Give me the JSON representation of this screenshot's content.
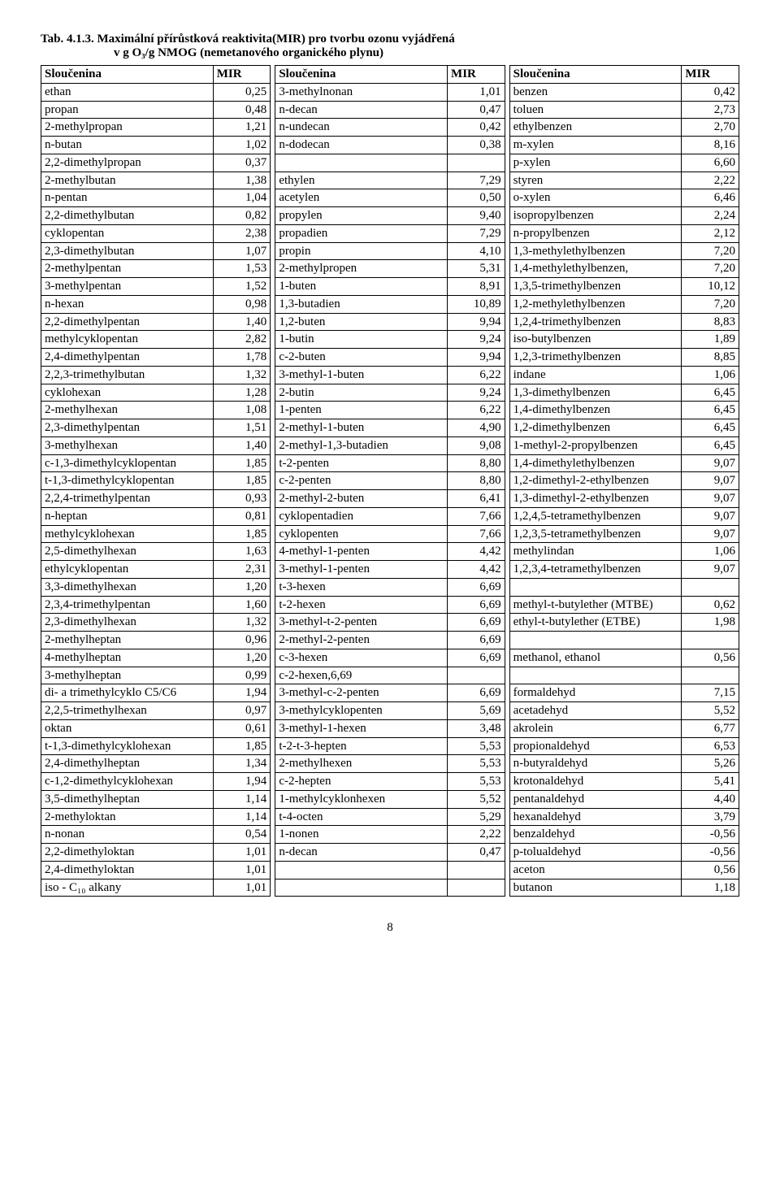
{
  "title": {
    "line1_prefix": "Tab. 4.1.3.",
    "line1_rest": " Maximální přírůstková reaktivita(MIR) pro tvorbu ozonu vyjádřená",
    "line2": "v g O₃/g NMOG (nemetanového organického plynu)"
  },
  "headers": {
    "compound": "Sloučenina",
    "mir": "MIR"
  },
  "cols": {
    "c1": [
      [
        "ethan",
        "0,25"
      ],
      [
        "propan",
        "0,48"
      ],
      [
        "2-methylpropan",
        "1,21"
      ],
      [
        "n-butan",
        "1,02"
      ],
      [
        "2,2-dimethylpropan",
        "0,37"
      ],
      [
        "2-methylbutan",
        "1,38"
      ],
      [
        "n-pentan",
        "1,04"
      ],
      [
        "2,2-dimethylbutan",
        "0,82"
      ],
      [
        "cyklopentan",
        "2,38"
      ],
      [
        "2,3-dimethylbutan",
        "1,07"
      ],
      [
        "2-methylpentan",
        "1,53"
      ],
      [
        "3-methylpentan",
        "1,52"
      ],
      [
        "n-hexan",
        "0,98"
      ],
      [
        "2,2-dimethylpentan",
        "1,40"
      ],
      [
        "methylcyklopentan",
        "2,82"
      ],
      [
        "2,4-dimethylpentan",
        "1,78"
      ],
      [
        "2,2,3-trimethylbutan",
        "1,32"
      ],
      [
        "cyklohexan",
        "1,28"
      ],
      [
        "2-methylhexan",
        "1,08"
      ],
      [
        "2,3-dimethylpentan",
        "1,51"
      ],
      [
        "3-methylhexan",
        "1,40"
      ],
      [
        "c-1,3-dimethylcyklopentan",
        "1,85"
      ],
      [
        "t-1,3-dimethylcyklopentan",
        "1,85"
      ],
      [
        "2,2,4-trimethylpentan",
        "0,93"
      ],
      [
        "n-heptan",
        "0,81"
      ],
      [
        "methylcyklohexan",
        "1,85"
      ],
      [
        "2,5-dimethylhexan",
        "1,63"
      ],
      [
        "ethylcyklopentan",
        "2,31"
      ],
      [
        "3,3-dimethylhexan",
        "1,20"
      ],
      [
        "2,3,4-trimethylpentan",
        "1,60"
      ],
      [
        "2,3-dimethylhexan",
        "1,32"
      ],
      [
        "2-methylheptan",
        "0,96"
      ],
      [
        "4-methylheptan",
        "1,20"
      ],
      [
        "3-methylheptan",
        "0,99"
      ],
      [
        "di- a trimethylcyklo C5/C6",
        "1,94"
      ],
      [
        "2,2,5-trimethylhexan",
        "0,97"
      ],
      [
        "oktan",
        "0,61"
      ],
      [
        "t-1,3-dimethylcyklohexan",
        "1,85"
      ],
      [
        "2,4-dimethylheptan",
        "1,34"
      ],
      [
        "c-1,2-dimethylcyklohexan",
        "1,94"
      ],
      [
        "3,5-dimethylheptan",
        "1,14"
      ],
      [
        "2-methyloktan",
        "1,14"
      ],
      [
        "n-nonan",
        "0,54"
      ],
      [
        "2,2-dimethyloktan",
        "1,01"
      ],
      [
        "2,4-dimethyloktan",
        "1,01"
      ],
      [
        "iso - C₁₀ alkany",
        "1,01"
      ]
    ],
    "c2": [
      [
        "3-methylnonan",
        "1,01"
      ],
      [
        "n-decan",
        "0,47"
      ],
      [
        "n-undecan",
        "0,42"
      ],
      [
        "n-dodecan",
        "0,38"
      ],
      [
        "",
        ""
      ],
      [
        "ethylen",
        "7,29"
      ],
      [
        "acetylen",
        "0,50"
      ],
      [
        "propylen",
        "9,40"
      ],
      [
        "propadien",
        "7,29"
      ],
      [
        "propin",
        "4,10"
      ],
      [
        "2-methylpropen",
        "5,31"
      ],
      [
        "1-buten",
        "8,91"
      ],
      [
        "1,3-butadien",
        "10,89"
      ],
      [
        "1,2-buten",
        "9,94"
      ],
      [
        "1-butin",
        "9,24"
      ],
      [
        "c-2-buten",
        "9,94"
      ],
      [
        "3-methyl-1-buten",
        "6,22"
      ],
      [
        "2-butin",
        "9,24"
      ],
      [
        "1-penten",
        "6,22"
      ],
      [
        "2-methyl-1-buten",
        "4,90"
      ],
      [
        "2-methyl-1,3-butadien",
        "9,08"
      ],
      [
        "t-2-penten",
        "8,80"
      ],
      [
        "c-2-penten",
        "8,80"
      ],
      [
        "2-methyl-2-buten",
        "6,41"
      ],
      [
        "cyklopentadien",
        "7,66"
      ],
      [
        "cyklopenten",
        "7,66"
      ],
      [
        "4-methyl-1-penten",
        "4,42"
      ],
      [
        "3-methyl-1-penten",
        "4,42"
      ],
      [
        "t-3-hexen",
        "6,69"
      ],
      [
        "t-2-hexen",
        "6,69"
      ],
      [
        "3-methyl-t-2-penten",
        "6,69"
      ],
      [
        "2-methyl-2-penten",
        "6,69"
      ],
      [
        "c-3-hexen",
        "6,69"
      ],
      [
        "c-2-hexen,6,69",
        ""
      ],
      [
        "3-methyl-c-2-penten",
        "6,69"
      ],
      [
        "3-methylcyklopenten",
        "5,69"
      ],
      [
        "3-methyl-1-hexen",
        "3,48"
      ],
      [
        "t-2-t-3-hepten",
        "5,53"
      ],
      [
        "2-methylhexen",
        "5,53"
      ],
      [
        "c-2-hepten",
        "5,53"
      ],
      [
        "1-methylcyklonhexen",
        "5,52"
      ],
      [
        "t-4-octen",
        "5,29"
      ],
      [
        "1-nonen",
        "2,22"
      ],
      [
        "n-decan",
        "0,47"
      ],
      [
        "",
        ""
      ],
      [
        "",
        ""
      ]
    ],
    "c3": [
      [
        "benzen",
        "0,42"
      ],
      [
        "toluen",
        "2,73"
      ],
      [
        "ethylbenzen",
        "2,70"
      ],
      [
        "m-xylen",
        "8,16"
      ],
      [
        "p-xylen",
        "6,60"
      ],
      [
        "styren",
        "2,22"
      ],
      [
        "o-xylen",
        "6,46"
      ],
      [
        "isopropylbenzen",
        "2,24"
      ],
      [
        "n-propylbenzen",
        "2,12"
      ],
      [
        "1,3-methylethylbenzen",
        "7,20"
      ],
      [
        "1,4-methylethylbenzen,",
        "7,20"
      ],
      [
        "1,3,5-trimethylbenzen",
        "10,12"
      ],
      [
        "1,2-methylethylbenzen",
        "7,20"
      ],
      [
        "1,2,4-trimethylbenzen",
        "8,83"
      ],
      [
        "iso-butylbenzen",
        "1,89"
      ],
      [
        "1,2,3-trimethylbenzen",
        "8,85"
      ],
      [
        "indane",
        "1,06"
      ],
      [
        "1,3-dimethylbenzen",
        "6,45"
      ],
      [
        "1,4-dimethylbenzen",
        "6,45"
      ],
      [
        "1,2-dimethylbenzen",
        "6,45"
      ],
      [
        "1-methyl-2-propylbenzen",
        "6,45"
      ],
      [
        "1,4-dimethylethylbenzen",
        "9,07"
      ],
      [
        "1,2-dimethyl-2-ethylbenzen",
        "9,07"
      ],
      [
        "1,3-dimethyl-2-ethylbenzen",
        "9,07"
      ],
      [
        "1,2,4,5-tetramethylbenzen",
        "9,07"
      ],
      [
        "1,2,3,5-tetramethylbenzen",
        "9,07"
      ],
      [
        "methylindan",
        "1,06"
      ],
      [
        "1,2,3,4-tetramethylbenzen",
        "9,07"
      ],
      [
        "",
        ""
      ],
      [
        "methyl-t-butylether (MTBE)",
        "0,62"
      ],
      [
        "ethyl-t-butylether (ETBE)",
        "1,98"
      ],
      [
        "",
        ""
      ],
      [
        "methanol, ethanol",
        "0,56"
      ],
      [
        "",
        ""
      ],
      [
        "formaldehyd",
        "7,15"
      ],
      [
        "acetadehyd",
        "5,52"
      ],
      [
        "akrolein",
        "6,77"
      ],
      [
        "propionaldehyd",
        "6,53"
      ],
      [
        "n-butyraldehyd",
        "5,26"
      ],
      [
        "krotonaldehyd",
        "5,41"
      ],
      [
        "pentanaldehyd",
        "4,40"
      ],
      [
        "hexanaldehyd",
        "3,79"
      ],
      [
        "benzaldehyd",
        "-0,56"
      ],
      [
        "p-tolualdehyd",
        "-0,56"
      ],
      [
        "aceton",
        "0,56"
      ],
      [
        "butanon",
        "1,18"
      ]
    ]
  },
  "page": "8"
}
